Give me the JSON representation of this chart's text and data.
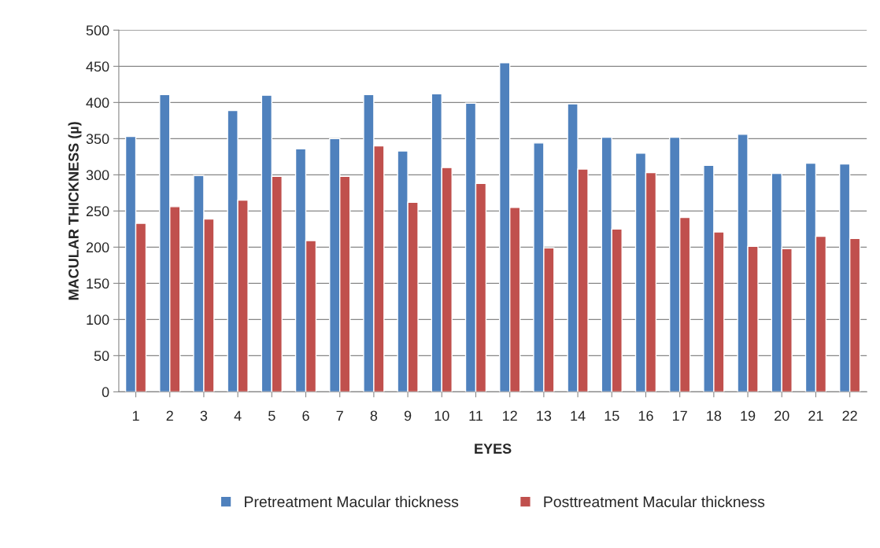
{
  "chart_data": {
    "type": "bar",
    "xlabel": "EYES",
    "ylabel": "MACULAR THICKNESS (µ)",
    "categories": [
      "1",
      "2",
      "3",
      "4",
      "5",
      "6",
      "7",
      "8",
      "9",
      "10",
      "11",
      "12",
      "13",
      "14",
      "15",
      "16",
      "17",
      "18",
      "19",
      "20",
      "21",
      "22"
    ],
    "series": [
      {
        "name": "Pretreatment Macular thickness",
        "color": "#4f81bd",
        "values": [
          353,
          411,
          299,
          389,
          410,
          336,
          350,
          411,
          333,
          412,
          399,
          455,
          344,
          398,
          352,
          330,
          352,
          313,
          356,
          302,
          316,
          315
        ]
      },
      {
        "name": "Posttreatment Macular thickness",
        "color": "#c0504d",
        "values": [
          233,
          256,
          239,
          265,
          298,
          209,
          298,
          340,
          262,
          310,
          288,
          255,
          199,
          308,
          225,
          303,
          241,
          221,
          201,
          198,
          215,
          212
        ]
      }
    ],
    "ylim": [
      0,
      500
    ],
    "yticks": [
      0,
      50,
      100,
      150,
      200,
      250,
      300,
      350,
      400,
      450,
      500
    ],
    "grid": "y",
    "legend": "bottom"
  }
}
